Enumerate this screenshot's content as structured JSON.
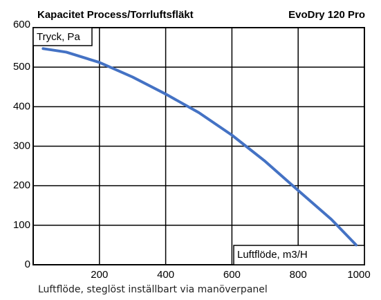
{
  "chart_data": {
    "type": "line",
    "title": "Kapacitet  Process/Torrluftsfläkt",
    "subtitle": "EvoDry 120 Pro",
    "y_label": "Tryck, Pa",
    "x_label": "Luftflöde, m3/H",
    "caption": "Luftflöde, steglöst inställbart via manöverpanel",
    "x": [
      30,
      100,
      200,
      300,
      400,
      500,
      600,
      700,
      800,
      900,
      975
    ],
    "series": [
      {
        "name": "EvoDry 120 Pro",
        "color": "#4472c4",
        "values": [
          547,
          538,
          512,
          475,
          432,
          385,
          328,
          262,
          188,
          115,
          50
        ]
      }
    ],
    "xlim": [
      0,
      1000
    ],
    "xticks": [
      200,
      400,
      600,
      800,
      1000
    ],
    "ylim": [
      0,
      600
    ],
    "yticks": [
      0,
      100,
      200,
      300,
      400,
      500,
      600
    ],
    "grid": true
  }
}
